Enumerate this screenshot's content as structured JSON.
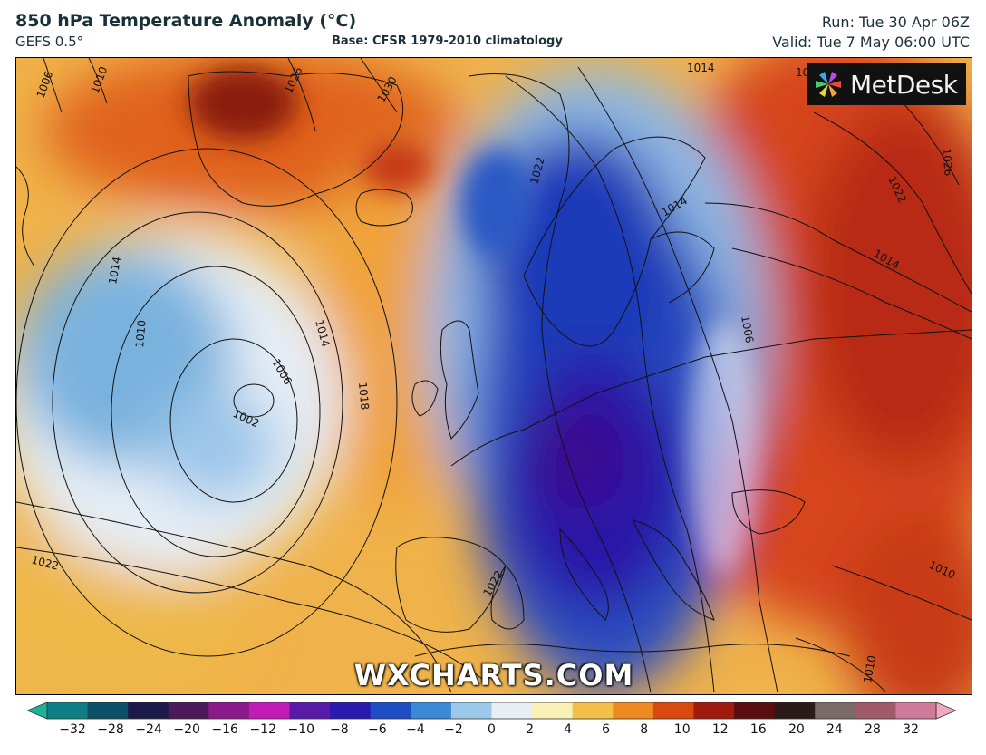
{
  "header": {
    "title": "850 hPa Temperature Anomaly (°C)",
    "model": "GEFS 0.5°",
    "base": "Base: CFSR 1979-2010 climatology",
    "run": "Run: Tue 30 Apr 06Z",
    "valid": "Valid: Tue 7 May 06:00 UTC"
  },
  "branding": {
    "logo_text": "MetDesk",
    "watermark": "WXCHARTS.COM"
  },
  "isobars": {
    "labels": [
      "1006",
      "1010",
      "1026",
      "1030",
      "1014",
      "1010",
      "1006",
      "1002",
      "1014",
      "1018",
      "1022",
      "1022",
      "1014",
      "1022",
      "1014",
      "1006",
      "1026",
      "1022",
      "1010",
      "1010",
      "1014",
      "1018"
    ]
  },
  "colorbar": {
    "ticks": [
      "−32",
      "−28",
      "−24",
      "−20",
      "−16",
      "−12",
      "−10",
      "−8",
      "−6",
      "−4",
      "−2",
      "0",
      "2",
      "4",
      "6",
      "8",
      "10",
      "12",
      "16",
      "20",
      "24",
      "28",
      "32"
    ],
    "colors": [
      "#1ab39a",
      "#0e7e85",
      "#0c4f66",
      "#1c1a4a",
      "#4a1a5a",
      "#8a1a8a",
      "#c21ab4",
      "#5a1aa8",
      "#2a1ab0",
      "#1e4ec4",
      "#3a8ad6",
      "#9cc8ea",
      "#e8eef4",
      "#f8f0b4",
      "#f2c04a",
      "#ee8a22",
      "#d84a10",
      "#a01a0e",
      "#5a0e0e",
      "#2a1a1a",
      "#7a6a6a",
      "#a05a6a",
      "#d07a9a",
      "#f0a8c0"
    ]
  }
}
